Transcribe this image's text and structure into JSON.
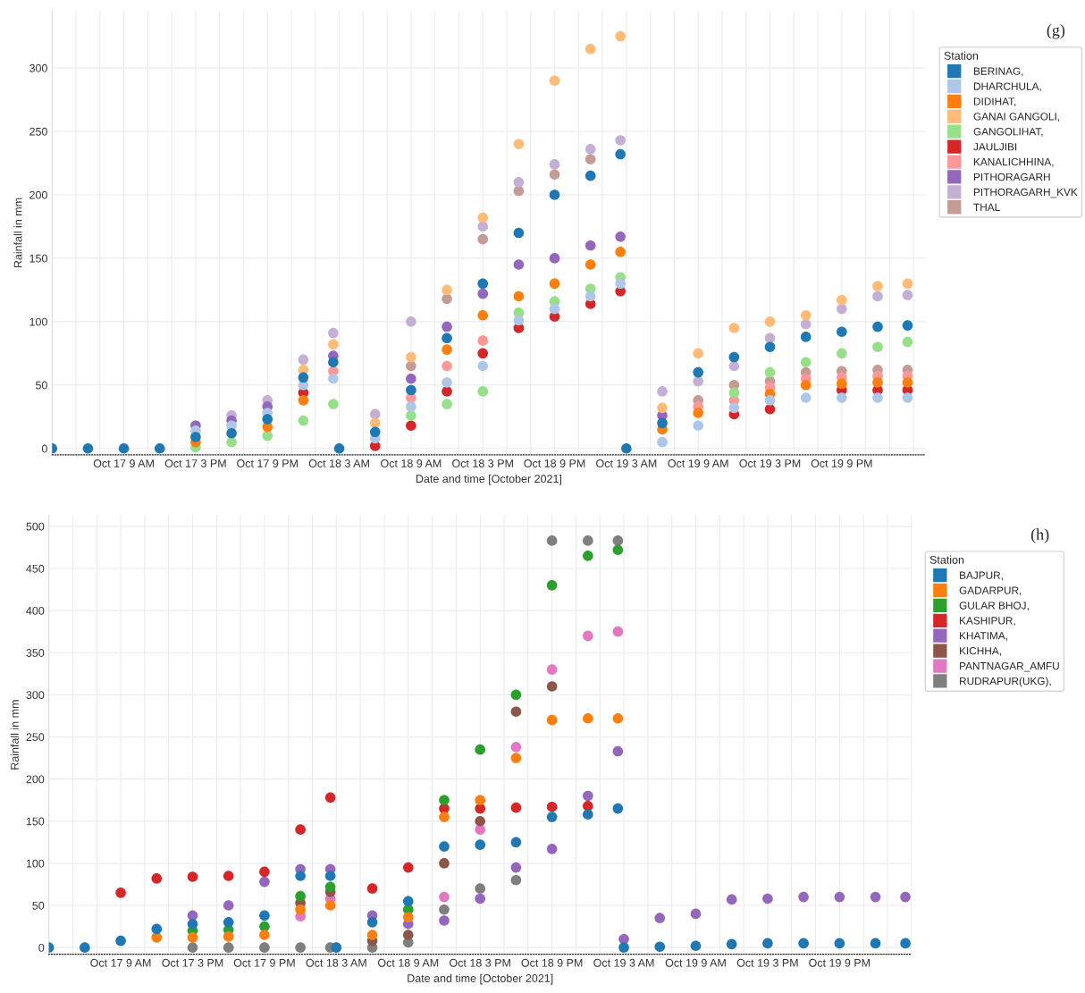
{
  "chart_data": [
    {
      "type": "scatter",
      "xlabel": "Date and time [October 2021]",
      "ylabel": "Rainfall in mm",
      "legend_title": "Station",
      "legend": "right",
      "grid": true,
      "marker": "circle",
      "annotations": [
        "(g)"
      ],
      "xlim": [
        "2021-10-17T03:00",
        "2021-10-20T04:00"
      ],
      "ylim": [
        -5,
        345
      ],
      "yticks": [
        0,
        50,
        100,
        150,
        200,
        250,
        300
      ],
      "xticks": [
        {
          "value": "2021-10-17T03:00",
          "label": null
        },
        {
          "value": "2021-10-17T05:00",
          "label": null
        },
        {
          "value": "2021-10-17T07:00",
          "label": null
        },
        {
          "value": "2021-10-17T09:00",
          "label": "Oct 17 9 AM"
        },
        {
          "value": "2021-10-17T11:00",
          "label": null
        },
        {
          "value": "2021-10-17T13:00",
          "label": null
        },
        {
          "value": "2021-10-17T15:00",
          "label": "Oct 17 3 PM"
        },
        {
          "value": "2021-10-17T17:00",
          "label": null
        },
        {
          "value": "2021-10-17T19:00",
          "label": null
        },
        {
          "value": "2021-10-17T21:00",
          "label": "Oct 17 9 PM"
        },
        {
          "value": "2021-10-17T23:00",
          "label": null
        },
        {
          "value": "2021-10-18T01:00",
          "label": null
        },
        {
          "value": "2021-10-18T03:00",
          "label": "Oct 18 3 AM"
        },
        {
          "value": "2021-10-18T05:00",
          "label": null
        },
        {
          "value": "2021-10-18T07:00",
          "label": null
        },
        {
          "value": "2021-10-18T09:00",
          "label": "Oct 18 9 AM"
        },
        {
          "value": "2021-10-18T11:00",
          "label": null
        },
        {
          "value": "2021-10-18T13:00",
          "label": null
        },
        {
          "value": "2021-10-18T15:00",
          "label": "Oct 18 3 PM"
        },
        {
          "value": "2021-10-18T17:00",
          "label": null
        },
        {
          "value": "2021-10-18T19:00",
          "label": null
        },
        {
          "value": "2021-10-18T21:00",
          "label": "Oct 18 9 PM"
        },
        {
          "value": "2021-10-18T23:00",
          "label": null
        },
        {
          "value": "2021-10-19T01:00",
          "label": null
        },
        {
          "value": "2021-10-19T03:00",
          "label": "Oct 19 3 AM"
        },
        {
          "value": "2021-10-19T05:00",
          "label": null
        },
        {
          "value": "2021-10-19T07:00",
          "label": null
        },
        {
          "value": "2021-10-19T09:00",
          "label": "Oct 19 9 AM"
        },
        {
          "value": "2021-10-19T11:00",
          "label": null
        },
        {
          "value": "2021-10-19T13:00",
          "label": null
        },
        {
          "value": "2021-10-19T15:00",
          "label": "Oct 19 3 PM"
        },
        {
          "value": "2021-10-19T17:00",
          "label": null
        },
        {
          "value": "2021-10-19T19:00",
          "label": null
        },
        {
          "value": "2021-10-19T21:00",
          "label": "Oct 19 9 PM"
        },
        {
          "value": "2021-10-19T23:00",
          "label": null
        },
        {
          "value": "2021-10-20T01:00",
          "label": null
        },
        {
          "value": "2021-10-20T03:00",
          "label": null
        }
      ],
      "x": [
        "2021-10-17T03:00",
        "2021-10-17T06:00",
        "2021-10-17T09:00",
        "2021-10-17T12:00",
        "2021-10-17T15:00",
        "2021-10-17T18:00",
        "2021-10-17T21:00",
        "2021-10-18T00:00",
        "2021-10-18T02:30",
        "2021-10-18T03:00",
        "2021-10-18T06:00",
        "2021-10-18T09:00",
        "2021-10-18T12:00",
        "2021-10-18T15:00",
        "2021-10-18T18:00",
        "2021-10-18T21:00",
        "2021-10-19T00:00",
        "2021-10-19T02:30",
        "2021-10-19T03:00",
        "2021-10-19T06:00",
        "2021-10-19T09:00",
        "2021-10-19T12:00",
        "2021-10-19T15:00",
        "2021-10-19T18:00",
        "2021-10-19T21:00",
        "2021-10-20T00:00",
        "2021-10-20T02:30"
      ],
      "series": [
        {
          "name": "BERINAG,",
          "color": "#1f77b4",
          "values": [
            0,
            0,
            0,
            0,
            9,
            12,
            23,
            56,
            68,
            0,
            13,
            46,
            87,
            130,
            170,
            200,
            215,
            232,
            0,
            20,
            60,
            72,
            80,
            88,
            92,
            96,
            97
          ]
        },
        {
          "name": "DHARCHULA,",
          "color": "#aec7e8",
          "values": [
            null,
            null,
            null,
            null,
            14,
            18,
            28,
            50,
            55,
            null,
            8,
            33,
            52,
            65,
            101,
            110,
            120,
            130,
            null,
            5,
            18,
            32,
            38,
            40,
            40,
            40,
            40
          ]
        },
        {
          "name": "DIDIHAT,",
          "color": "#ff7f0e",
          "values": [
            null,
            null,
            null,
            null,
            5,
            null,
            17,
            38,
            null,
            null,
            null,
            null,
            78,
            105,
            120,
            130,
            145,
            155,
            null,
            15,
            28,
            null,
            43,
            50,
            51,
            52,
            52
          ]
        },
        {
          "name": "GANAI GANGOLI,",
          "color": "#ffbb78",
          "values": [
            null,
            null,
            null,
            null,
            null,
            null,
            null,
            62,
            82,
            null,
            20,
            72,
            125,
            182,
            240,
            290,
            315,
            325,
            null,
            32,
            75,
            95,
            100,
            105,
            117,
            128,
            130
          ]
        },
        {
          "name": "GANGOLIHAT,",
          "color": "#98df8a",
          "values": [
            null,
            null,
            null,
            null,
            1,
            5,
            10,
            22,
            35,
            null,
            null,
            26,
            35,
            45,
            107,
            116,
            126,
            135,
            null,
            null,
            null,
            44,
            60,
            68,
            75,
            80,
            84
          ]
        },
        {
          "name": "JAULJIBI",
          "color": "#d62728",
          "values": [
            null,
            null,
            null,
            null,
            null,
            null,
            null,
            44,
            null,
            null,
            2,
            18,
            45,
            75,
            95,
            104,
            114,
            124,
            null,
            null,
            null,
            27,
            31,
            null,
            46,
            46,
            46
          ]
        },
        {
          "name": "KANALICHHINA,",
          "color": "#ff9896",
          "values": [
            null,
            null,
            null,
            null,
            null,
            null,
            null,
            null,
            61,
            null,
            null,
            40,
            65,
            85,
            null,
            null,
            null,
            null,
            null,
            null,
            33,
            38,
            48,
            55,
            56,
            57,
            57
          ]
        },
        {
          "name": "PITHORAGARH",
          "color": "#9467bd",
          "values": [
            null,
            null,
            null,
            null,
            18,
            22,
            33,
            null,
            73,
            null,
            null,
            55,
            96,
            122,
            145,
            150,
            160,
            167,
            null,
            26,
            null,
            null,
            null,
            null,
            null,
            null,
            null
          ]
        },
        {
          "name": "PITHORAGARH_KVK",
          "color": "#c5b0d5",
          "values": [
            null,
            null,
            null,
            null,
            null,
            26,
            38,
            70,
            91,
            null,
            27,
            100,
            null,
            175,
            210,
            224,
            236,
            243,
            null,
            45,
            53,
            65,
            87,
            98,
            110,
            120,
            121
          ]
        },
        {
          "name": "THAL",
          "color": "#c49c94",
          "values": [
            null,
            null,
            null,
            null,
            null,
            null,
            null,
            null,
            null,
            null,
            null,
            65,
            118,
            165,
            203,
            216,
            228,
            null,
            null,
            null,
            38,
            50,
            53,
            60,
            61,
            62,
            62
          ]
        }
      ]
    },
    {
      "type": "scatter",
      "xlabel": "Date and time [October 2021]",
      "ylabel": "Rainfall in mm",
      "legend_title": "Station",
      "legend": "right",
      "grid": true,
      "marker": "circle",
      "annotations": [
        "(h)"
      ],
      "xlim": [
        "2021-10-17T03:00",
        "2021-10-20T03:00"
      ],
      "ylim": [
        -8,
        513
      ],
      "yticks": [
        0,
        50,
        100,
        150,
        200,
        250,
        300,
        350,
        400,
        450,
        500
      ],
      "xticks": [
        {
          "value": "2021-10-17T03:00",
          "label": null
        },
        {
          "value": "2021-10-17T05:00",
          "label": null
        },
        {
          "value": "2021-10-17T07:00",
          "label": null
        },
        {
          "value": "2021-10-17T09:00",
          "label": "Oct 17 9 AM"
        },
        {
          "value": "2021-10-17T11:00",
          "label": null
        },
        {
          "value": "2021-10-17T13:00",
          "label": null
        },
        {
          "value": "2021-10-17T15:00",
          "label": "Oct 17 3 PM"
        },
        {
          "value": "2021-10-17T17:00",
          "label": null
        },
        {
          "value": "2021-10-17T19:00",
          "label": null
        },
        {
          "value": "2021-10-17T21:00",
          "label": "Oct 17 9 PM"
        },
        {
          "value": "2021-10-17T23:00",
          "label": null
        },
        {
          "value": "2021-10-18T01:00",
          "label": null
        },
        {
          "value": "2021-10-18T03:00",
          "label": "Oct 18 3 AM"
        },
        {
          "value": "2021-10-18T05:00",
          "label": null
        },
        {
          "value": "2021-10-18T07:00",
          "label": null
        },
        {
          "value": "2021-10-18T09:00",
          "label": "Oct 18 9 AM"
        },
        {
          "value": "2021-10-18T11:00",
          "label": null
        },
        {
          "value": "2021-10-18T13:00",
          "label": null
        },
        {
          "value": "2021-10-18T15:00",
          "label": "Oct 18 3 PM"
        },
        {
          "value": "2021-10-18T17:00",
          "label": null
        },
        {
          "value": "2021-10-18T19:00",
          "label": null
        },
        {
          "value": "2021-10-18T21:00",
          "label": "Oct 18 9 PM"
        },
        {
          "value": "2021-10-18T23:00",
          "label": null
        },
        {
          "value": "2021-10-19T01:00",
          "label": null
        },
        {
          "value": "2021-10-19T03:00",
          "label": "Oct 19 3 AM"
        },
        {
          "value": "2021-10-19T05:00",
          "label": null
        },
        {
          "value": "2021-10-19T07:00",
          "label": null
        },
        {
          "value": "2021-10-19T09:00",
          "label": "Oct 19 9 AM"
        },
        {
          "value": "2021-10-19T11:00",
          "label": null
        },
        {
          "value": "2021-10-19T13:00",
          "label": null
        },
        {
          "value": "2021-10-19T15:00",
          "label": "Oct 19 3 PM"
        },
        {
          "value": "2021-10-19T17:00",
          "label": null
        },
        {
          "value": "2021-10-19T19:00",
          "label": null
        },
        {
          "value": "2021-10-19T21:00",
          "label": "Oct 19 9 PM"
        },
        {
          "value": "2021-10-19T23:00",
          "label": null
        },
        {
          "value": "2021-10-20T01:00",
          "label": null
        },
        {
          "value": "2021-10-20T03:00",
          "label": null
        }
      ],
      "x": [
        "2021-10-17T03:00",
        "2021-10-17T06:00",
        "2021-10-17T09:00",
        "2021-10-17T12:00",
        "2021-10-17T15:00",
        "2021-10-17T18:00",
        "2021-10-17T21:00",
        "2021-10-18T00:00",
        "2021-10-18T02:30",
        "2021-10-18T03:00",
        "2021-10-18T06:00",
        "2021-10-18T09:00",
        "2021-10-18T12:00",
        "2021-10-18T15:00",
        "2021-10-18T18:00",
        "2021-10-18T21:00",
        "2021-10-19T00:00",
        "2021-10-19T02:30",
        "2021-10-19T03:00",
        "2021-10-19T06:00",
        "2021-10-19T09:00",
        "2021-10-19T12:00",
        "2021-10-19T15:00",
        "2021-10-19T18:00",
        "2021-10-19T21:00",
        "2021-10-20T00:00",
        "2021-10-20T02:30"
      ],
      "series": [
        {
          "name": "BAJPUR,",
          "color": "#1f77b4",
          "values": [
            0,
            0,
            8,
            22,
            28,
            30,
            38,
            85,
            85,
            0,
            30,
            55,
            120,
            122,
            125,
            155,
            158,
            165,
            0,
            1,
            2,
            4,
            5,
            5,
            5,
            5,
            5
          ]
        },
        {
          "name": "GADARPUR,",
          "color": "#ff7f0e",
          "values": [
            null,
            null,
            null,
            12,
            12,
            13,
            15,
            45,
            50,
            null,
            15,
            36,
            155,
            175,
            225,
            270,
            272,
            272,
            null,
            null,
            null,
            null,
            null,
            null,
            null,
            null,
            null
          ]
        },
        {
          "name": "GULAR BHOJ,",
          "color": "#2ca02c",
          "values": [
            null,
            null,
            null,
            null,
            20,
            21,
            25,
            61,
            72,
            null,
            null,
            45,
            175,
            235,
            300,
            430,
            465,
            472,
            null,
            null,
            null,
            null,
            null,
            null,
            null,
            null,
            null
          ]
        },
        {
          "name": "KASHIPUR,",
          "color": "#d62728",
          "values": [
            null,
            null,
            65,
            82,
            84,
            85,
            90,
            140,
            178,
            null,
            70,
            95,
            165,
            165,
            166,
            167,
            168,
            null,
            null,
            null,
            null,
            null,
            null,
            null,
            null,
            null,
            null
          ]
        },
        {
          "name": "KHATIMA,",
          "color": "#9467bd",
          "values": [
            null,
            null,
            null,
            null,
            38,
            50,
            78,
            93,
            93,
            null,
            38,
            28,
            32,
            58,
            95,
            117,
            180,
            233,
            10,
            35,
            40,
            57,
            58,
            60,
            60,
            60,
            60
          ]
        },
        {
          "name": "KICHHA,",
          "color": "#8c564b",
          "values": [
            null,
            null,
            null,
            null,
            null,
            null,
            null,
            53,
            66,
            null,
            8,
            15,
            100,
            150,
            280,
            310,
            null,
            null,
            null,
            null,
            null,
            null,
            null,
            null,
            null,
            null,
            null
          ]
        },
        {
          "name": "PANTNAGAR_AMFU",
          "color": "#e377c2",
          "values": [
            null,
            null,
            null,
            null,
            null,
            null,
            null,
            37,
            58,
            null,
            null,
            null,
            60,
            140,
            238,
            330,
            370,
            375,
            null,
            null,
            null,
            null,
            null,
            null,
            null,
            null,
            null
          ]
        },
        {
          "name": "RUDRAPUR(UKG),",
          "color": "#7f7f7f",
          "values": [
            null,
            null,
            null,
            null,
            0,
            0,
            0,
            0,
            0,
            null,
            0,
            6,
            45,
            70,
            80,
            483,
            483,
            483,
            null,
            null,
            null,
            null,
            null,
            null,
            null,
            null,
            null
          ]
        }
      ]
    }
  ]
}
